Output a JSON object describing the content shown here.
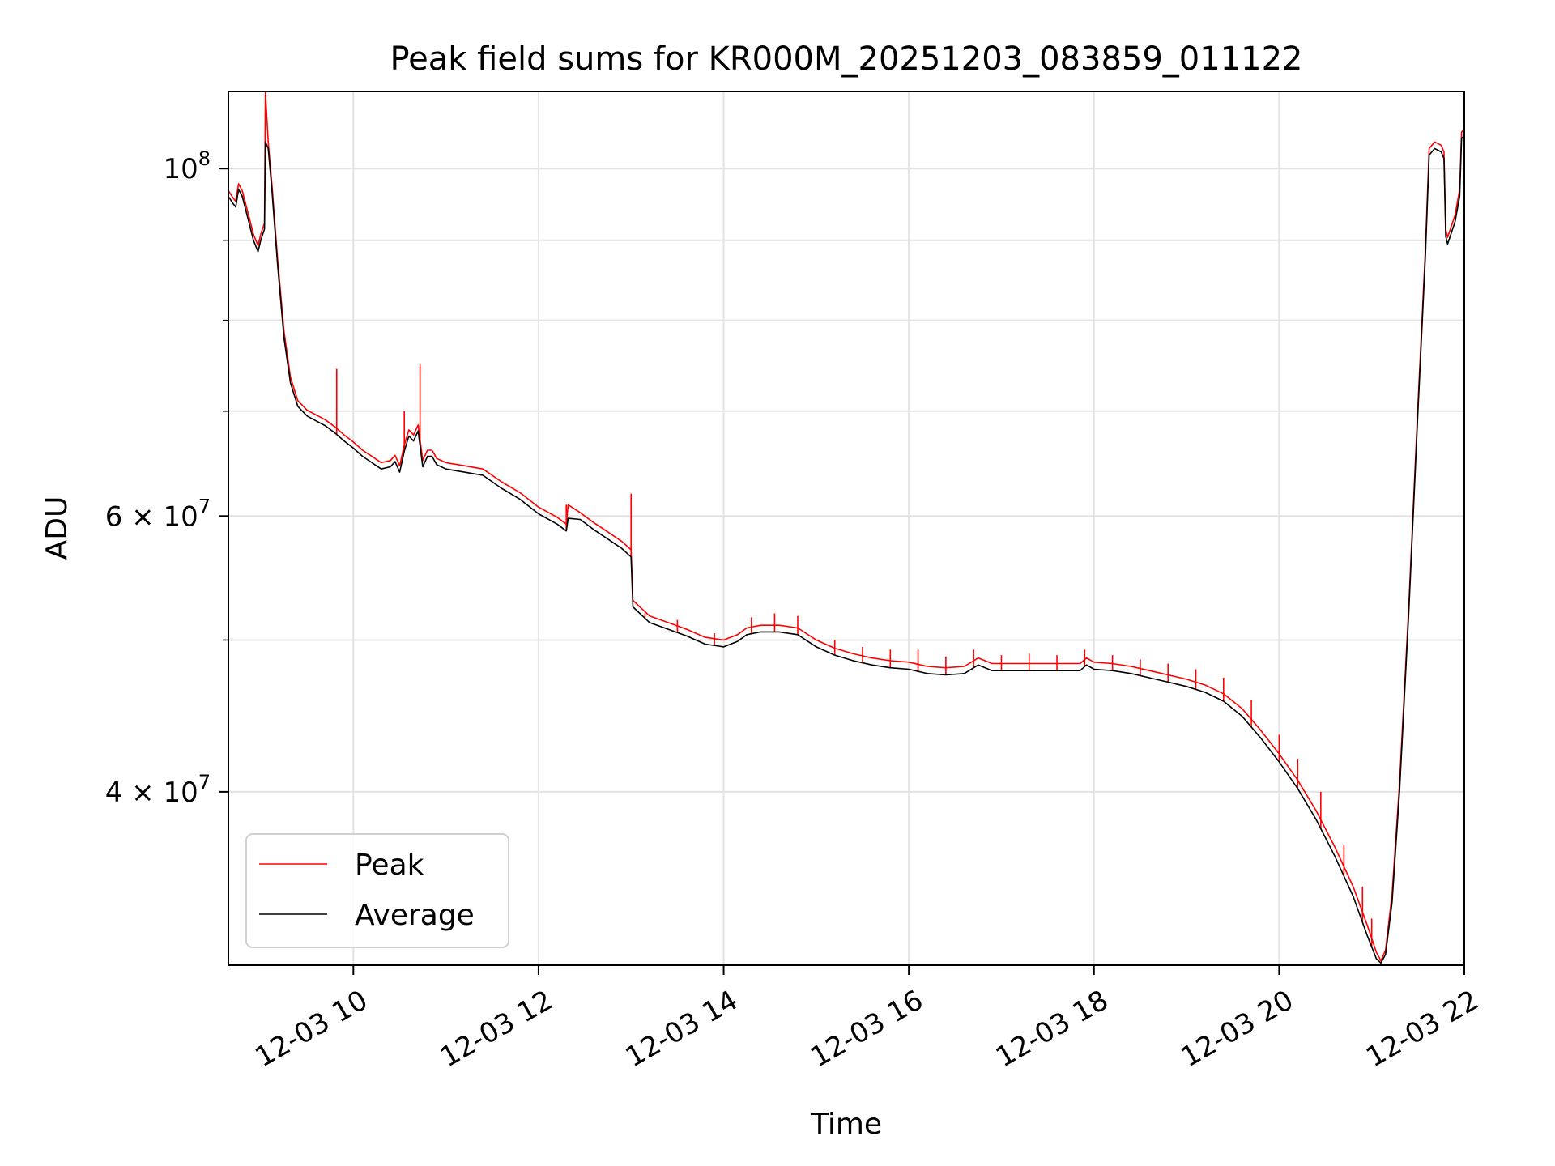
{
  "chart_data": {
    "type": "line",
    "title": "Peak field sums for KR000M_20251203_083859_011122",
    "xlabel": "Time",
    "ylabel": "ADU",
    "yscale": "log",
    "xlim_hours": [
      8.65,
      22.0
    ],
    "ylim": [
      31000000,
      112000000
    ],
    "grid": true,
    "legend_position": "lower-left",
    "x_ticks": [
      {
        "hour": 10,
        "label": "12-03 10"
      },
      {
        "hour": 12,
        "label": "12-03 12"
      },
      {
        "hour": 14,
        "label": "12-03 14"
      },
      {
        "hour": 16,
        "label": "12-03 16"
      },
      {
        "hour": 18,
        "label": "12-03 18"
      },
      {
        "hour": 20,
        "label": "12-03 20"
      },
      {
        "hour": 22,
        "label": "12-03 22"
      }
    ],
    "y_ticks_major": [
      {
        "value": 40000000,
        "mantissa": "4",
        "exponent": "7"
      },
      {
        "value": 60000000,
        "mantissa": "6",
        "exponent": "7"
      },
      {
        "value": 100000000,
        "mantissa": "10",
        "exponent": "8"
      }
    ],
    "y_ticks_minor": [
      50000000,
      70000000,
      80000000,
      90000000
    ],
    "series": [
      {
        "name": "Average",
        "color": "#000000",
        "points": [
          [
            8.65,
            96000000
          ],
          [
            8.7,
            95000000
          ],
          [
            8.73,
            94500000
          ],
          [
            8.76,
            97000000
          ],
          [
            8.8,
            96000000
          ],
          [
            8.86,
            93000000
          ],
          [
            8.92,
            90000000
          ],
          [
            8.97,
            88500000
          ],
          [
            9.0,
            90000000
          ],
          [
            9.04,
            91500000
          ],
          [
            9.05,
            104000000
          ],
          [
            9.08,
            103000000
          ],
          [
            9.12,
            97000000
          ],
          [
            9.18,
            87000000
          ],
          [
            9.25,
            78000000
          ],
          [
            9.32,
            73000000
          ],
          [
            9.4,
            70500000
          ],
          [
            9.5,
            69500000
          ],
          [
            9.6,
            69000000
          ],
          [
            9.7,
            68500000
          ],
          [
            9.8,
            67800000
          ],
          [
            9.9,
            67000000
          ],
          [
            10.0,
            66300000
          ],
          [
            10.1,
            65500000
          ],
          [
            10.2,
            64900000
          ],
          [
            10.3,
            64300000
          ],
          [
            10.4,
            64500000
          ],
          [
            10.45,
            65000000
          ],
          [
            10.5,
            64000000
          ],
          [
            10.55,
            66000000
          ],
          [
            10.6,
            67500000
          ],
          [
            10.65,
            67000000
          ],
          [
            10.7,
            68000000
          ],
          [
            10.75,
            64500000
          ],
          [
            10.8,
            65500000
          ],
          [
            10.85,
            65500000
          ],
          [
            10.9,
            64700000
          ],
          [
            11.0,
            64300000
          ],
          [
            11.2,
            64000000
          ],
          [
            11.4,
            63700000
          ],
          [
            11.6,
            62500000
          ],
          [
            11.8,
            61500000
          ],
          [
            12.0,
            60200000
          ],
          [
            12.2,
            59300000
          ],
          [
            12.3,
            58700000
          ],
          [
            12.32,
            59800000
          ],
          [
            12.45,
            59700000
          ],
          [
            12.6,
            58800000
          ],
          [
            12.75,
            58000000
          ],
          [
            12.9,
            57200000
          ],
          [
            13.0,
            56500000
          ],
          [
            13.02,
            52500000
          ],
          [
            13.2,
            51300000
          ],
          [
            13.4,
            50800000
          ],
          [
            13.6,
            50300000
          ],
          [
            13.8,
            49700000
          ],
          [
            14.0,
            49500000
          ],
          [
            14.15,
            49900000
          ],
          [
            14.25,
            50400000
          ],
          [
            14.4,
            50600000
          ],
          [
            14.6,
            50600000
          ],
          [
            14.8,
            50400000
          ],
          [
            15.0,
            49500000
          ],
          [
            15.2,
            48900000
          ],
          [
            15.4,
            48500000
          ],
          [
            15.6,
            48200000
          ],
          [
            15.8,
            48000000
          ],
          [
            16.0,
            47900000
          ],
          [
            16.2,
            47600000
          ],
          [
            16.4,
            47500000
          ],
          [
            16.6,
            47600000
          ],
          [
            16.75,
            48200000
          ],
          [
            16.9,
            47800000
          ],
          [
            17.2,
            47800000
          ],
          [
            17.6,
            47800000
          ],
          [
            17.85,
            47800000
          ],
          [
            17.92,
            48200000
          ],
          [
            18.0,
            47900000
          ],
          [
            18.2,
            47800000
          ],
          [
            18.4,
            47600000
          ],
          [
            18.6,
            47300000
          ],
          [
            18.8,
            47000000
          ],
          [
            19.0,
            46700000
          ],
          [
            19.2,
            46300000
          ],
          [
            19.4,
            45700000
          ],
          [
            19.6,
            44700000
          ],
          [
            19.8,
            43300000
          ],
          [
            20.0,
            41800000
          ],
          [
            20.2,
            40200000
          ],
          [
            20.4,
            38400000
          ],
          [
            20.6,
            36400000
          ],
          [
            20.8,
            34300000
          ],
          [
            20.95,
            32400000
          ],
          [
            21.05,
            31300000
          ],
          [
            21.1,
            31100000
          ],
          [
            21.15,
            31500000
          ],
          [
            21.22,
            34000000
          ],
          [
            21.3,
            40000000
          ],
          [
            21.4,
            52000000
          ],
          [
            21.5,
            70000000
          ],
          [
            21.58,
            88000000
          ],
          [
            21.62,
            102000000
          ],
          [
            21.68,
            103000000
          ],
          [
            21.75,
            102500000
          ],
          [
            21.78,
            101500000
          ],
          [
            21.8,
            90500000
          ],
          [
            21.82,
            89500000
          ],
          [
            21.9,
            92500000
          ],
          [
            21.95,
            96000000
          ],
          [
            21.97,
            104500000
          ],
          [
            22.0,
            105000000
          ]
        ]
      },
      {
        "name": "Peak",
        "color": "#ff0000",
        "points": [
          [
            8.65,
            96800000
          ],
          [
            8.7,
            95800000
          ],
          [
            8.73,
            95300000
          ],
          [
            8.76,
            97800000
          ],
          [
            8.8,
            96800000
          ],
          [
            8.86,
            93800000
          ],
          [
            8.92,
            90800000
          ],
          [
            8.97,
            89300000
          ],
          [
            9.0,
            90800000
          ],
          [
            9.04,
            92300000
          ],
          [
            9.05,
            112000000
          ],
          [
            9.08,
            104000000
          ],
          [
            9.12,
            97800000
          ],
          [
            9.18,
            87800000
          ],
          [
            9.25,
            78800000
          ],
          [
            9.32,
            73600000
          ],
          [
            9.4,
            71100000
          ],
          [
            9.5,
            70100000
          ],
          [
            9.6,
            69600000
          ],
          [
            9.7,
            69100000
          ],
          [
            9.8,
            68400000
          ],
          [
            9.9,
            67600000
          ],
          [
            10.0,
            66900000
          ],
          [
            10.1,
            66100000
          ],
          [
            10.2,
            65500000
          ],
          [
            10.3,
            64900000
          ],
          [
            10.4,
            65100000
          ],
          [
            10.45,
            65600000
          ],
          [
            10.5,
            64600000
          ],
          [
            10.55,
            66600000
          ],
          [
            10.6,
            68100000
          ],
          [
            10.65,
            67600000
          ],
          [
            10.7,
            68600000
          ],
          [
            10.75,
            65100000
          ],
          [
            10.8,
            66100000
          ],
          [
            10.85,
            66100000
          ],
          [
            10.9,
            65300000
          ],
          [
            11.0,
            64900000
          ],
          [
            11.2,
            64600000
          ],
          [
            11.4,
            64300000
          ],
          [
            11.6,
            63100000
          ],
          [
            11.8,
            62100000
          ],
          [
            12.0,
            60800000
          ],
          [
            12.2,
            59900000
          ],
          [
            12.3,
            59300000
          ],
          [
            12.32,
            61000000
          ],
          [
            12.45,
            60300000
          ],
          [
            12.6,
            59400000
          ],
          [
            12.75,
            58600000
          ],
          [
            12.9,
            57800000
          ],
          [
            13.0,
            57100000
          ],
          [
            13.02,
            53000000
          ],
          [
            13.2,
            51800000
          ],
          [
            13.4,
            51300000
          ],
          [
            13.6,
            50800000
          ],
          [
            13.8,
            50200000
          ],
          [
            14.0,
            50000000
          ],
          [
            14.15,
            50400000
          ],
          [
            14.25,
            50900000
          ],
          [
            14.4,
            51100000
          ],
          [
            14.6,
            51100000
          ],
          [
            14.8,
            50900000
          ],
          [
            15.0,
            50000000
          ],
          [
            15.2,
            49400000
          ],
          [
            15.4,
            49000000
          ],
          [
            15.6,
            48700000
          ],
          [
            15.8,
            48500000
          ],
          [
            16.0,
            48400000
          ],
          [
            16.2,
            48100000
          ],
          [
            16.4,
            48000000
          ],
          [
            16.6,
            48100000
          ],
          [
            16.75,
            48700000
          ],
          [
            16.9,
            48300000
          ],
          [
            17.2,
            48300000
          ],
          [
            17.6,
            48300000
          ],
          [
            17.85,
            48300000
          ],
          [
            17.92,
            48700000
          ],
          [
            18.0,
            48400000
          ],
          [
            18.2,
            48300000
          ],
          [
            18.4,
            48100000
          ],
          [
            18.6,
            47800000
          ],
          [
            18.8,
            47500000
          ],
          [
            19.0,
            47200000
          ],
          [
            19.2,
            46800000
          ],
          [
            19.4,
            46200000
          ],
          [
            19.6,
            45200000
          ],
          [
            19.8,
            43800000
          ],
          [
            20.0,
            42300000
          ],
          [
            20.2,
            40700000
          ],
          [
            20.4,
            38900000
          ],
          [
            20.6,
            36900000
          ],
          [
            20.8,
            34800000
          ],
          [
            20.95,
            32900000
          ],
          [
            21.05,
            31600000
          ],
          [
            21.1,
            31200000
          ],
          [
            21.15,
            31700000
          ],
          [
            21.22,
            34400000
          ],
          [
            21.3,
            40500000
          ],
          [
            21.4,
            52500000
          ],
          [
            21.5,
            70700000
          ],
          [
            21.58,
            88900000
          ],
          [
            21.62,
            103000000
          ],
          [
            21.68,
            104000000
          ],
          [
            21.75,
            103500000
          ],
          [
            21.78,
            102500000
          ],
          [
            21.8,
            91400000
          ],
          [
            21.82,
            90400000
          ],
          [
            21.9,
            93400000
          ],
          [
            21.95,
            97000000
          ],
          [
            21.97,
            105500000
          ],
          [
            22.0,
            106000000
          ]
        ],
        "spikes": [
          [
            9.82,
            74500000
          ],
          [
            10.55,
            70000000
          ],
          [
            10.72,
            75000000
          ],
          [
            12.3,
            61000000
          ],
          [
            13.0,
            62000000
          ],
          [
            13.15,
            52000000
          ],
          [
            13.5,
            51500000
          ],
          [
            13.9,
            50500000
          ],
          [
            14.3,
            51700000
          ],
          [
            14.55,
            52000000
          ],
          [
            14.8,
            51800000
          ],
          [
            15.2,
            50000000
          ],
          [
            15.5,
            49500000
          ],
          [
            15.8,
            49300000
          ],
          [
            16.1,
            49300000
          ],
          [
            16.4,
            48800000
          ],
          [
            16.7,
            49300000
          ],
          [
            17.0,
            48900000
          ],
          [
            17.3,
            49000000
          ],
          [
            17.6,
            48900000
          ],
          [
            17.9,
            49300000
          ],
          [
            18.2,
            48900000
          ],
          [
            18.5,
            48600000
          ],
          [
            18.8,
            48300000
          ],
          [
            19.1,
            47900000
          ],
          [
            19.4,
            47300000
          ],
          [
            19.7,
            45800000
          ],
          [
            20.0,
            43500000
          ],
          [
            20.2,
            42000000
          ],
          [
            20.45,
            40000000
          ],
          [
            20.7,
            37000000
          ],
          [
            20.9,
            34800000
          ],
          [
            21.0,
            33200000
          ]
        ]
      }
    ]
  }
}
